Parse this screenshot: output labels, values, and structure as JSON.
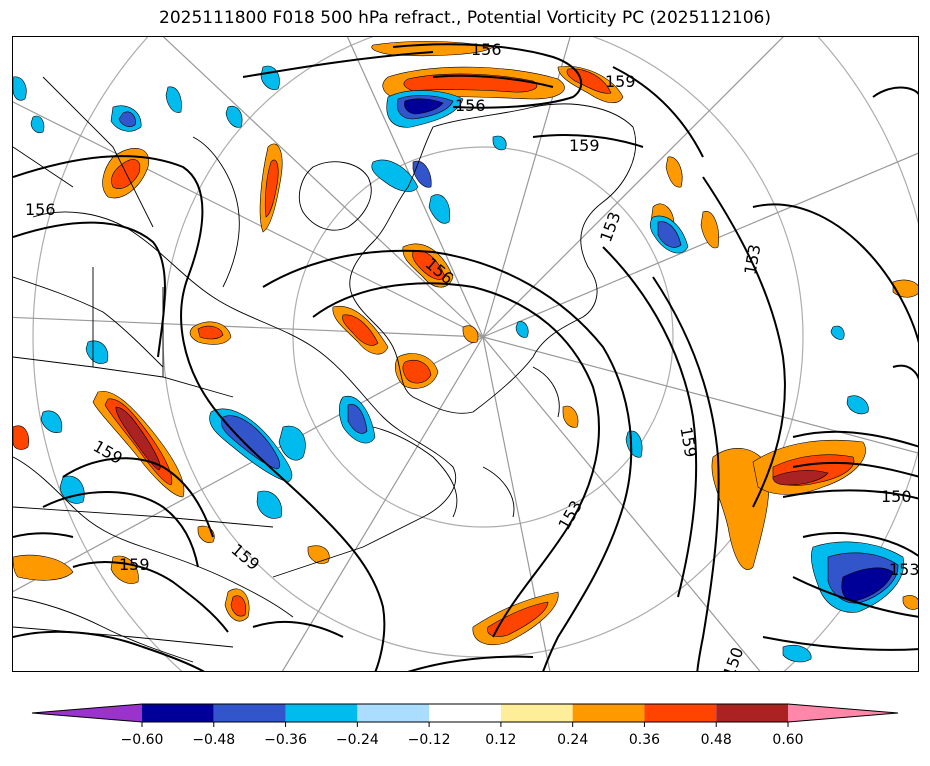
{
  "title": "2025111800 F018 500 hPa refract., Potential Vorticity PC (2025112106)",
  "colors": {
    "fill_neg": [
      "#9933cc",
      "#000099",
      "#3355cc",
      "#00bbee",
      "#aaddff"
    ],
    "fill_pos": [
      "#ffee99",
      "#ff9900",
      "#ff4400",
      "#aa2222",
      "#ff88aa"
    ],
    "contour": "#000000",
    "graticule": "#999999",
    "coast": "#000000"
  },
  "contour_labels": [
    {
      "text": "156"
    },
    {
      "text": "156"
    },
    {
      "text": "156"
    },
    {
      "text": "159"
    },
    {
      "text": "159"
    },
    {
      "text": "153"
    },
    {
      "text": "153"
    },
    {
      "text": "159"
    },
    {
      "text": "153"
    },
    {
      "text": "150"
    },
    {
      "text": "153"
    },
    {
      "text": "150"
    },
    {
      "text": "159"
    },
    {
      "text": "159"
    },
    {
      "text": "159"
    },
    {
      "text": "156"
    }
  ],
  "colorbar": {
    "extend": "both",
    "colors": [
      "#9933cc",
      "#000099",
      "#3355cc",
      "#00bbee",
      "#aaddff",
      "#ffffff",
      "#ffee99",
      "#ff9900",
      "#ff4400",
      "#aa2222",
      "#ff88aa"
    ],
    "ticks": [
      "−0.60",
      "−0.48",
      "−0.36",
      "−0.24",
      "−0.12",
      "0.12",
      "0.24",
      "0.36",
      "0.48",
      "0.60"
    ]
  }
}
